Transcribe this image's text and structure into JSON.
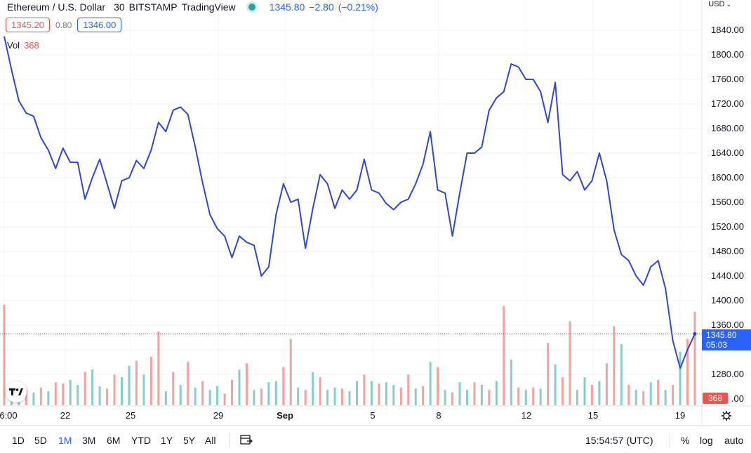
{
  "legend": {
    "symbol": "Ethereum / U.S. Dollar",
    "interval": "30",
    "exchange": "BITSTAMP",
    "source": "TradingView",
    "last_price": "1345.80",
    "change": "−2.80",
    "change_pct": "(−0.21%)"
  },
  "price_boxes": {
    "bid": "1345.20",
    "spread": "0.80",
    "ask": "1346.00"
  },
  "volume_legend": {
    "label": "Vol",
    "value": "368"
  },
  "price_axis": {
    "currency": "USD",
    "ticks": [
      "1840.00",
      "1800.00",
      "1760.00",
      "1720.00",
      "1680.00",
      "1640.00",
      "1600.00",
      "1560.00",
      "1520.00",
      "1480.00",
      "1440.00",
      "1400.00",
      "1360.00",
      "1280.00",
      ".00"
    ]
  },
  "time_axis": {
    "ticks": [
      "6:00",
      "22",
      "25",
      "29",
      "Sep",
      "5",
      "8",
      "12",
      "15",
      "19"
    ]
  },
  "current_price_tag": {
    "price": "1345.80",
    "countdown": "05:03"
  },
  "current_volume_tag": "368",
  "toolbar": {
    "ranges": [
      "1D",
      "5D",
      "1M",
      "3M",
      "6M",
      "YTD",
      "1Y",
      "5Y",
      "All"
    ],
    "active_range": "1M",
    "clock": "15:54:57 (UTC)",
    "percent_label": "%",
    "log_label": "log",
    "auto_label": "auto"
  },
  "colors": {
    "line": "#3046d9",
    "up": "#26a69a",
    "down": "#ef5350",
    "accent": "#2962ff"
  },
  "chart_data": {
    "type": "line",
    "series": [
      {
        "name": "Ethereum / U.S. Dollar",
        "points": [
          [
            0,
            1830
          ],
          [
            1,
            1775
          ],
          [
            2,
            1725
          ],
          [
            3,
            1705
          ],
          [
            4,
            1700
          ],
          [
            5,
            1665
          ],
          [
            6,
            1645
          ],
          [
            7,
            1615
          ],
          [
            8,
            1648
          ],
          [
            9,
            1625
          ],
          [
            10,
            1625
          ],
          [
            11,
            1565
          ],
          [
            12,
            1600
          ],
          [
            13,
            1630
          ],
          [
            14,
            1590
          ],
          [
            15,
            1550
          ],
          [
            16,
            1595
          ],
          [
            17,
            1600
          ],
          [
            18,
            1628
          ],
          [
            19,
            1615
          ],
          [
            20,
            1645
          ],
          [
            21,
            1690
          ],
          [
            22,
            1675
          ],
          [
            23,
            1710
          ],
          [
            24,
            1715
          ],
          [
            25,
            1703
          ],
          [
            26,
            1650
          ],
          [
            27,
            1592
          ],
          [
            28,
            1540
          ],
          [
            29,
            1517
          ],
          [
            30,
            1505
          ],
          [
            31,
            1470
          ],
          [
            32,
            1505
          ],
          [
            33,
            1495
          ],
          [
            34,
            1490
          ],
          [
            35,
            1440
          ],
          [
            36,
            1455
          ],
          [
            37,
            1540
          ],
          [
            38,
            1590
          ],
          [
            39,
            1560
          ],
          [
            40,
            1565
          ],
          [
            41,
            1485
          ],
          [
            42,
            1550
          ],
          [
            43,
            1605
          ],
          [
            44,
            1590
          ],
          [
            45,
            1550
          ],
          [
            46,
            1580
          ],
          [
            47,
            1565
          ],
          [
            48,
            1580
          ],
          [
            49,
            1630
          ],
          [
            50,
            1580
          ],
          [
            51,
            1575
          ],
          [
            52,
            1558
          ],
          [
            53,
            1548
          ],
          [
            54,
            1560
          ],
          [
            55,
            1565
          ],
          [
            56,
            1590
          ],
          [
            57,
            1622
          ],
          [
            58,
            1675
          ],
          [
            59,
            1580
          ],
          [
            60,
            1575
          ],
          [
            61,
            1505
          ],
          [
            62,
            1575
          ],
          [
            63,
            1640
          ],
          [
            64,
            1640
          ],
          [
            65,
            1650
          ],
          [
            66,
            1710
          ],
          [
            67,
            1730
          ],
          [
            68,
            1740
          ],
          [
            69,
            1785
          ],
          [
            70,
            1780
          ],
          [
            71,
            1760
          ],
          [
            72,
            1760
          ],
          [
            73,
            1740
          ],
          [
            74,
            1690
          ],
          [
            75,
            1755
          ],
          [
            76,
            1605
          ],
          [
            77,
            1595
          ],
          [
            78,
            1610
          ],
          [
            79,
            1580
          ],
          [
            80,
            1595
          ],
          [
            81,
            1640
          ],
          [
            82,
            1595
          ],
          [
            83,
            1515
          ],
          [
            84,
            1475
          ],
          [
            85,
            1465
          ],
          [
            86,
            1440
          ],
          [
            87,
            1425
          ],
          [
            88,
            1455
          ],
          [
            89,
            1465
          ],
          [
            90,
            1420
          ],
          [
            91,
            1335
          ],
          [
            92,
            1290
          ],
          [
            93,
            1320
          ],
          [
            94,
            1345.8
          ]
        ]
      }
    ],
    "volume": {
      "name": "Vol",
      "values": [
        395,
        60,
        80,
        60,
        50,
        70,
        55,
        90,
        85,
        100,
        80,
        130,
        140,
        75,
        65,
        120,
        110,
        155,
        175,
        120,
        190,
        290,
        55,
        130,
        80,
        170,
        70,
        95,
        60,
        75,
        45,
        100,
        140,
        165,
        60,
        65,
        90,
        95,
        150,
        260,
        70,
        60,
        130,
        110,
        60,
        70,
        65,
        55,
        95,
        120,
        95,
        85,
        90,
        80,
        70,
        120,
        65,
        75,
        170,
        150,
        60,
        50,
        90,
        60,
        90,
        80,
        60,
        95,
        390,
        180,
        70,
        60,
        70,
        65,
        245,
        160,
        110,
        330,
        60,
        110,
        80,
        95,
        165,
        310,
        240,
        80,
        60,
        55,
        90,
        100,
        60,
        80,
        210,
        260,
        368
      ],
      "up": [
        false,
        true,
        true,
        false,
        true,
        false,
        true,
        false,
        false,
        true,
        true,
        false,
        true,
        true,
        false,
        false,
        true,
        true,
        false,
        true,
        false,
        false,
        true,
        false,
        true,
        false,
        true,
        false,
        true,
        true,
        false,
        false,
        true,
        false,
        true,
        false,
        true,
        true,
        false,
        false,
        true,
        false,
        true,
        false,
        true,
        true,
        false,
        true,
        true,
        false,
        true,
        false,
        true,
        true,
        false,
        false,
        true,
        false,
        true,
        false,
        true,
        false,
        true,
        true,
        false,
        true,
        false,
        true,
        false,
        true,
        false,
        true,
        false,
        true,
        false,
        true,
        false,
        false,
        true,
        true,
        false,
        true,
        false,
        false,
        true,
        false,
        true,
        false,
        true,
        false,
        true,
        false,
        true,
        false,
        false
      ]
    },
    "ylim": [
      1270,
      1860
    ],
    "ylabel": "",
    "xlabel": "",
    "grid": true
  }
}
